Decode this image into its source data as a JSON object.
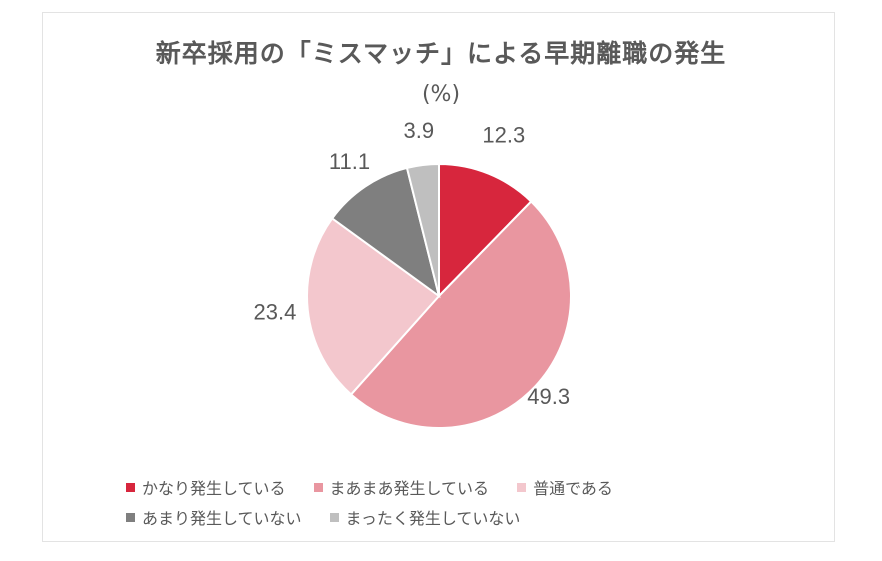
{
  "chart_data": {
    "type": "pie",
    "title": "新卒採用の「ミスマッチ」による早期離職の発生",
    "subtitle": "(%)",
    "slices": [
      {
        "label": "かなり発生している",
        "value": 12.3,
        "value_label": "12.3",
        "color": "#d7263d"
      },
      {
        "label": "まあまあ発生している",
        "value": 49.3,
        "value_label": "49.3",
        "color": "#e996a0"
      },
      {
        "label": "普通である",
        "value": 23.4,
        "value_label": "23.4",
        "color": "#f3c7cd"
      },
      {
        "label": "あまり発生していない",
        "value": 11.1,
        "value_label": "11.1",
        "color": "#7f7f7f"
      },
      {
        "label": "まったく発生していない",
        "value": 3.9,
        "value_label": "3.9",
        "color": "#bfbfbf"
      }
    ],
    "legend_position": "bottom",
    "start_angle": "12 o'clock",
    "direction": "clockwise"
  }
}
